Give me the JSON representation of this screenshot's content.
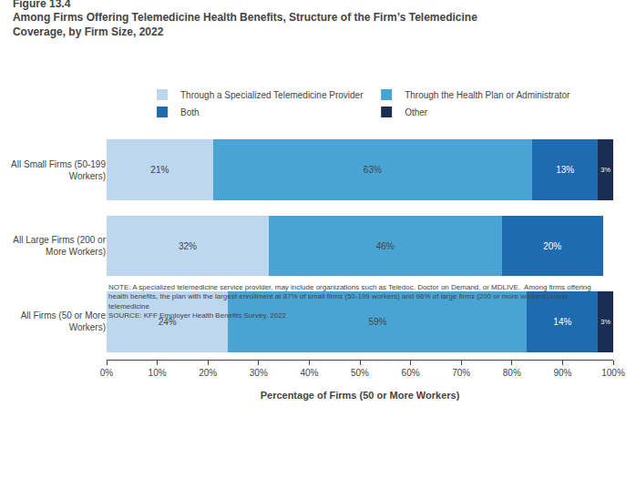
{
  "chart_data": {
    "type": "bar",
    "orientation": "horizontal",
    "stacked": true,
    "title": "Figure 13.4",
    "subtitle": "Among Firms Offering Telemedicine Health Benefits, Structure of the Firm’s Telemedicine\nCoverage, by Firm Size, 2022",
    "categories": [
      "All Firms (50 or More\nWorkers)",
      "All Large Firms (200 or\nMore Workers)",
      "All Small Firms (50-199\nWorkers)"
    ],
    "series": [
      {
        "name": "Through a Specialized Telemedicine Provider",
        "color": "#BDD7EE",
        "values": [
          24,
          32,
          21
        ],
        "value_labels": [
          "24%",
          "32%",
          "21%"
        ]
      },
      {
        "name": "Through the Health Plan or Administrator",
        "color": "#49A4D4",
        "values": [
          59,
          46,
          63
        ],
        "value_labels": [
          "59%",
          "46%",
          "63%"
        ]
      },
      {
        "name": "Both",
        "color": "#1F6BB0",
        "values": [
          14,
          20,
          13
        ],
        "value_labels": [
          "14%",
          "20%",
          "13%"
        ]
      },
      {
        "name": "Other",
        "color": "#1A2D52",
        "values": [
          3,
          0,
          3
        ],
        "value_labels": [
          "3%",
          null,
          "3%"
        ]
      }
    ],
    "data_labels": true,
    "xlabel": "Percentage of Firms (50 or More Workers)",
    "xlim": [
      0,
      100
    ],
    "xticks": [
      {
        "value": 0,
        "label": "0%"
      },
      {
        "value": 10,
        "label": "10%"
      },
      {
        "value": 20,
        "label": "20%"
      },
      {
        "value": 30,
        "label": "30%"
      },
      {
        "value": 40,
        "label": "40%"
      },
      {
        "value": 50,
        "label": "50%"
      },
      {
        "value": 60,
        "label": "60%"
      },
      {
        "value": 70,
        "label": "70%"
      },
      {
        "value": 80,
        "label": "80%"
      },
      {
        "value": 90,
        "label": "90%"
      },
      {
        "value": 100,
        "label": "100%"
      }
    ],
    "annotations": [
      "NOTE: A specialized telemedicine service provider, may include organizations such as Teledoc, Doctor on Demand, or MDLIVE.  Among firms offering",
      "health benefits, the plan with the largest enrollment at 87% of small firms (50-199 workers) and 96% of large firms (200 or more workers) cover",
      "telemedicine",
      "SOURCE: KFF Employer Health Benefits Survey, 2022"
    ],
    "legend": "top",
    "grid": false
  }
}
